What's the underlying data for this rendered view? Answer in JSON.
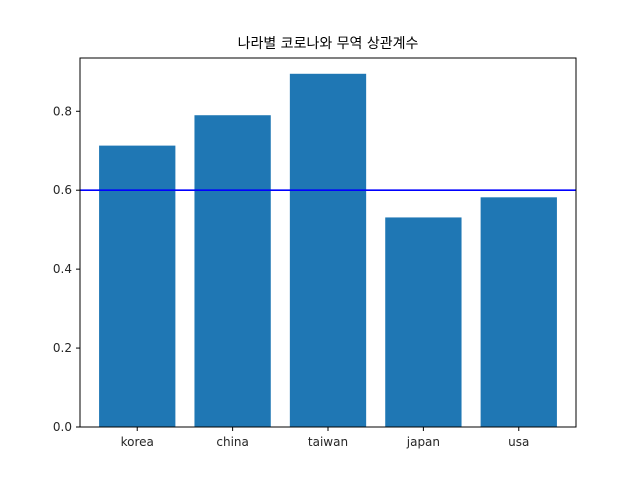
{
  "chart_data": {
    "type": "bar",
    "title": "나라별 코로나와 무역 상관계수",
    "xlabel": "",
    "ylabel": "",
    "categories": [
      "korea",
      "china",
      "taiwan",
      "japan",
      "usa"
    ],
    "values": [
      0.713,
      0.79,
      0.895,
      0.531,
      0.582
    ],
    "ylim": [
      0,
      0.935
    ],
    "yticks": [
      0.0,
      0.2,
      0.4,
      0.6,
      0.8
    ],
    "ytick_labels": [
      "0.0",
      "0.2",
      "0.4",
      "0.6",
      "0.8"
    ],
    "reference_line": 0.6,
    "grid": false,
    "legend": false,
    "colors": {
      "bar": "#1f77b4",
      "reference_line": "#0000ff",
      "axes": "#000000"
    }
  }
}
